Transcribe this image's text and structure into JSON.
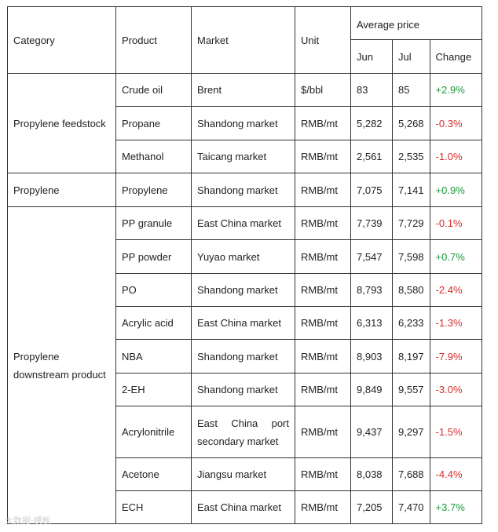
{
  "header": {
    "category": "Category",
    "product": "Product",
    "market": "Market",
    "unit": "Unit",
    "average_price": "Average price",
    "jun": "Jun",
    "jul": "Jul",
    "change": "Change"
  },
  "categories": {
    "feedstock": "Propylene feedstock",
    "propylene": "Propylene",
    "downstream_line1": "Propylene",
    "downstream_line2": "downstream product"
  },
  "rows": [
    {
      "product": "Crude oil",
      "market": "Brent",
      "unit": "$/bbl",
      "jun": "83",
      "jul": "85",
      "change": "+2.9%"
    },
    {
      "product": "Propane",
      "market": "Shandong market",
      "unit": "RMB/mt",
      "jun": "5,282",
      "jul": "5,268",
      "change": "-0.3%"
    },
    {
      "product": "Methanol",
      "market": "Taicang market",
      "unit": "RMB/mt",
      "jun": "2,561",
      "jul": "2,535",
      "change": "-1.0%"
    },
    {
      "product": "Propylene",
      "market": "Shandong market",
      "unit": "RMB/mt",
      "jun": "7,075",
      "jul": "7,141",
      "change": "+0.9%"
    },
    {
      "product": "PP granule",
      "market": "East China market",
      "unit": "RMB/mt",
      "jun": "7,739",
      "jul": "7,729",
      "change": "-0.1%"
    },
    {
      "product": "PP powder",
      "market": "Yuyao market",
      "unit": "RMB/mt",
      "jun": "7,547",
      "jul": "7,598",
      "change": "+0.7%"
    },
    {
      "product": "PO",
      "market": "Shandong market",
      "unit": "RMB/mt",
      "jun": "8,793",
      "jul": "8,580",
      "change": "-2.4%"
    },
    {
      "product": "Acrylic acid",
      "market": "East China market",
      "unit": "RMB/mt",
      "jun": "6,313",
      "jul": "6,233",
      "change": "-1.3%"
    },
    {
      "product": "NBA",
      "market": "Shandong market",
      "unit": "RMB/mt",
      "jun": "8,903",
      "jul": "8,197",
      "change": "-7.9%"
    },
    {
      "product": "2-EH",
      "market": "Shandong market",
      "unit": "RMB/mt",
      "jun": "9,849",
      "jul": "9,557",
      "change": "-3.0%"
    },
    {
      "product": "Acrylonitrile",
      "market": "East China port secondary market",
      "unit": "RMB/mt",
      "jun": "9,437",
      "jul": "9,297",
      "change": "-1.5%"
    },
    {
      "product": "Acetone",
      "market": "Jiangsu market",
      "unit": "RMB/mt",
      "jun": "8,038",
      "jul": "7,688",
      "change": "-4.4%"
    },
    {
      "product": "ECH",
      "market": "East China market",
      "unit": "RMB/mt",
      "jun": "7,205",
      "jul": "7,470",
      "change": "+3.7%"
    }
  ],
  "watermark": "大数据·模板",
  "colors": {
    "positive": "#1a9a3a",
    "negative": "#d42d2d",
    "border": "#333333"
  }
}
